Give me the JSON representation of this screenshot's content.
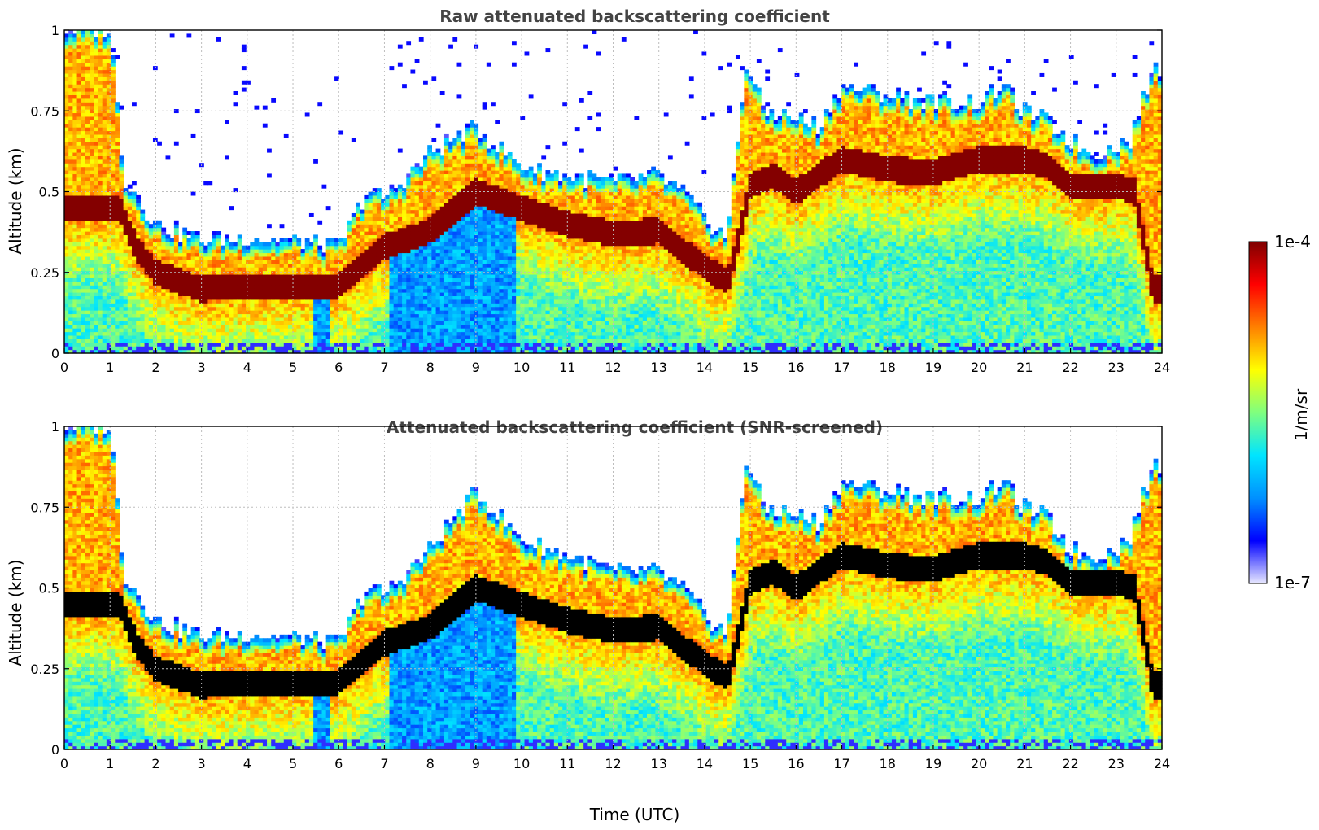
{
  "chart_data": [
    {
      "type": "heatmap",
      "title": "Raw attenuated backscattering coefficient",
      "xlabel": "",
      "ylabel": "Altitude (km)",
      "xlim": [
        0,
        24
      ],
      "ylim": [
        0,
        1
      ],
      "x_ticks": [
        0,
        1,
        2,
        3,
        4,
        5,
        6,
        7,
        8,
        9,
        10,
        11,
        12,
        13,
        14,
        15,
        16,
        17,
        18,
        19,
        20,
        21,
        22,
        23,
        24
      ],
      "y_ticks": [
        0,
        0.25,
        0.5,
        0.75,
        1
      ],
      "y_tick_labels": [
        "0",
        "0.25",
        "0.5",
        "0.75",
        "1"
      ],
      "grid": true,
      "screened": false,
      "layer_top_km": {
        "x": [
          0,
          1,
          1.3,
          2,
          3,
          4,
          5,
          6,
          6.6,
          7,
          8,
          9,
          10,
          11,
          12,
          13,
          13.5,
          14,
          14.5,
          14.9,
          15.3,
          16,
          16.5,
          17,
          18,
          19,
          20,
          20.5,
          21,
          21.5,
          22,
          22.5,
          23,
          23.3,
          23.8
        ],
        "y": [
          1,
          1,
          0.55,
          0.4,
          0.35,
          0.36,
          0.35,
          0.33,
          0.5,
          0.48,
          0.62,
          0.7,
          0.58,
          0.55,
          0.53,
          0.55,
          0.5,
          0.42,
          0.36,
          0.9,
          0.75,
          0.73,
          0.7,
          0.83,
          0.8,
          0.78,
          0.78,
          0.83,
          0.75,
          0.72,
          0.66,
          0.62,
          0.64,
          0.66,
          0.88
        ]
      },
      "layer_core_km": {
        "x": [
          1.2,
          1.6,
          2,
          3,
          4,
          5,
          6,
          6.6,
          7,
          8,
          9,
          10,
          11,
          12,
          13,
          13.5,
          14,
          14.5,
          15,
          15.5,
          16,
          17,
          18,
          19,
          20,
          21,
          21.5,
          22,
          23,
          23.4,
          23.8
        ],
        "y": [
          0.45,
          0.32,
          0.25,
          0.2,
          0.21,
          0.21,
          0.21,
          0.28,
          0.33,
          0.38,
          0.5,
          0.45,
          0.4,
          0.37,
          0.38,
          0.32,
          0.27,
          0.22,
          0.52,
          0.55,
          0.5,
          0.6,
          0.57,
          0.56,
          0.6,
          0.6,
          0.58,
          0.52,
          0.52,
          0.5,
          0.2
        ]
      }
    },
    {
      "type": "heatmap",
      "title": "Attenuated backscattering coefficient (SNR-screened)",
      "xlabel": "Time (UTC)",
      "ylabel": "Altitude (km)",
      "xlim": [
        0,
        24
      ],
      "ylim": [
        0,
        1
      ],
      "x_ticks": [
        0,
        1,
        2,
        3,
        4,
        5,
        6,
        7,
        8,
        9,
        10,
        11,
        12,
        13,
        14,
        15,
        16,
        17,
        18,
        19,
        20,
        21,
        22,
        23,
        24
      ],
      "y_ticks": [
        0,
        0.25,
        0.5,
        0.75,
        1
      ],
      "y_tick_labels": [
        "0",
        "0.25",
        "0.5",
        "0.75",
        "1"
      ],
      "grid": true,
      "screened": true,
      "saturated_color": "#000000",
      "layer_top_km": {
        "x": [
          0,
          1,
          1.3,
          2,
          3,
          4,
          5,
          6,
          6.6,
          7,
          8,
          9,
          10,
          11,
          12,
          13,
          13.5,
          14,
          14.5,
          14.9,
          15.3,
          16,
          16.5,
          17,
          18,
          19,
          20,
          20.5,
          21,
          21.5,
          22,
          22.5,
          23,
          23.3,
          23.8
        ],
        "y": [
          1,
          1,
          0.55,
          0.4,
          0.35,
          0.36,
          0.35,
          0.33,
          0.5,
          0.48,
          0.62,
          0.8,
          0.65,
          0.6,
          0.55,
          0.55,
          0.5,
          0.42,
          0.36,
          0.9,
          0.75,
          0.73,
          0.7,
          0.83,
          0.8,
          0.78,
          0.78,
          0.83,
          0.75,
          0.72,
          0.62,
          0.6,
          0.62,
          0.66,
          0.88
        ]
      },
      "layer_core_km": {
        "x": [
          1.2,
          1.6,
          2,
          3,
          4,
          5,
          6,
          6.6,
          7,
          8,
          9,
          10,
          11,
          12,
          13,
          13.5,
          14,
          14.5,
          15,
          15.5,
          16,
          17,
          18,
          19,
          20,
          21,
          21.5,
          22,
          23,
          23.4,
          23.8
        ],
        "y": [
          0.45,
          0.32,
          0.25,
          0.2,
          0.21,
          0.21,
          0.21,
          0.28,
          0.33,
          0.38,
          0.5,
          0.45,
          0.4,
          0.37,
          0.38,
          0.32,
          0.27,
          0.22,
          0.52,
          0.55,
          0.5,
          0.6,
          0.57,
          0.56,
          0.6,
          0.6,
          0.58,
          0.52,
          0.52,
          0.5,
          0.2
        ]
      }
    }
  ],
  "colorbar": {
    "label": "1/m/sr",
    "max_label": "1e-4",
    "min_label": "1e-7",
    "max_value": 0.0001,
    "min_value": 1e-07,
    "scale": "log",
    "colormap": "jet",
    "stops": [
      "#e8e8ff",
      "#0000ff",
      "#0090ff",
      "#00e5ff",
      "#7fff7f",
      "#ffff00",
      "#ff8000",
      "#ff0000",
      "#7f0000"
    ]
  }
}
